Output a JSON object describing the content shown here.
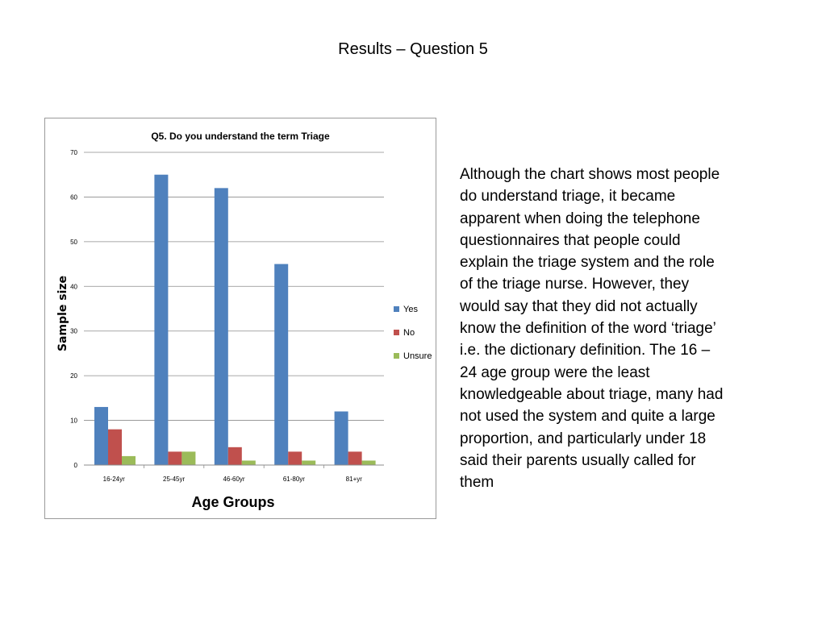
{
  "slide": {
    "title": "Results – Question 5",
    "body_text": "Although the chart shows most people\ndo understand triage, it became\napparent when doing the telephone\nquestionnaires that people could\nexplain the triage system and the role\nof the triage nurse. However, they\nwould say that they did not actually\nknow the definition of the word ‘triage’\ni.e. the dictionary definition.  The 16 –\n24 age group were the least\nknowledgeable about triage, many had\nnot used the system and quite a large\nproportion, and particularly under 18\nsaid their parents usually called for\nthem"
  },
  "chart_data": {
    "type": "bar",
    "title": "Q5. Do you understand the term Triage",
    "xlabel": "Age Groups",
    "ylabel": "Sample size",
    "categories": [
      "16-24yr",
      "25-45yr",
      "46-60yr",
      "61-80yr",
      "81+yr"
    ],
    "series": [
      {
        "name": "Yes",
        "values": [
          13,
          65,
          62,
          45,
          12
        ],
        "color": "#4f81bd"
      },
      {
        "name": "No",
        "values": [
          8,
          3,
          4,
          3,
          3
        ],
        "color": "#c0504d"
      },
      {
        "name": "Unsure",
        "values": [
          2,
          3,
          1,
          1,
          1
        ],
        "color": "#9bbb59"
      }
    ],
    "ylim": [
      0,
      70
    ],
    "yticks": [
      0,
      10,
      20,
      30,
      40,
      50,
      60,
      70
    ],
    "grid": true,
    "legend": "right"
  }
}
